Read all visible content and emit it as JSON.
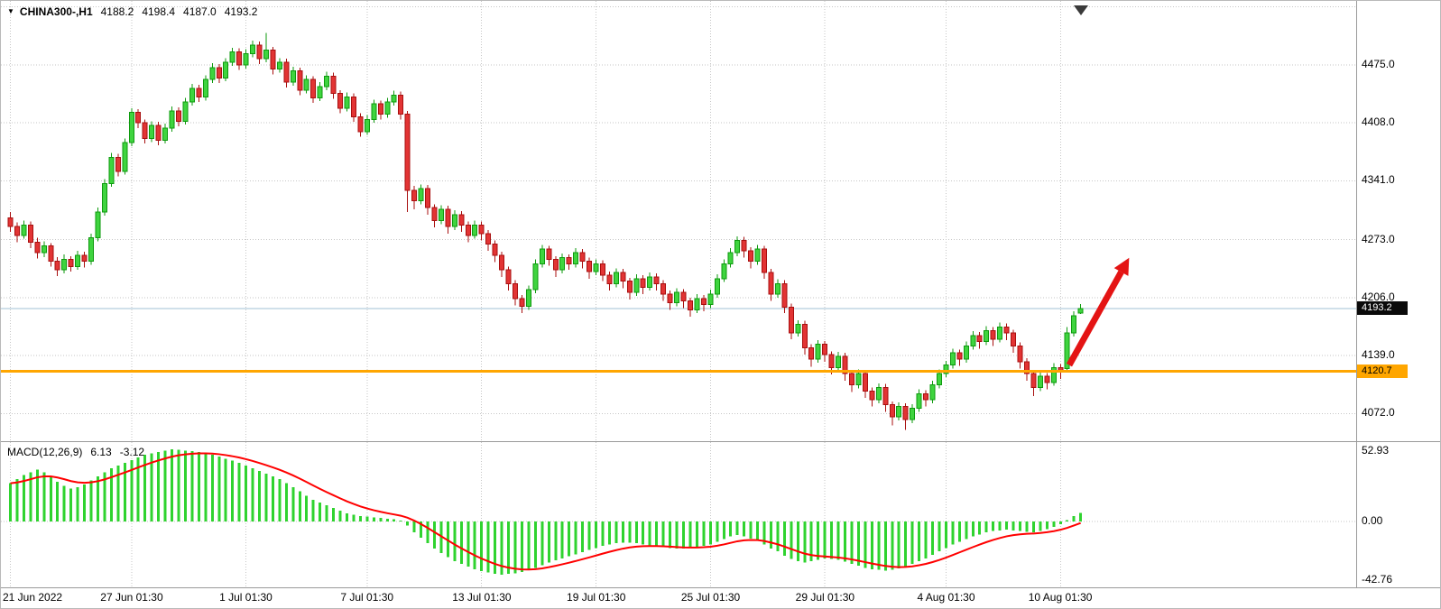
{
  "header": {
    "symbol": "CHINA300-,H1",
    "open": "4188.2",
    "high": "4198.4",
    "low": "4187.0",
    "close": "4193.2"
  },
  "macd_header": {
    "name": "MACD(12,26,9)",
    "value": "6.13",
    "signal": "-3.12"
  },
  "colors": {
    "up_fill": "#3fd43f",
    "up_stroke": "#0e9a0e",
    "down_fill": "#e23434",
    "down_stroke": "#a80f0f",
    "grid": "#c6c6c6",
    "separator": "#9a9a9a",
    "price_line": "#a2c0d4",
    "orange": "#ffa600",
    "macd_bar": "#2fd32f",
    "signal": "#ff0000",
    "arrow": "#e41414",
    "text": "#000000"
  },
  "axis": {
    "price_tags": [
      {
        "text": "4193.2",
        "value": 4193.2,
        "bg": "#0a0a0a",
        "fg": "#ffffff",
        "draggable": false
      },
      {
        "text": "4120.7",
        "value": 4120.7,
        "bg": "#ffa600",
        "fg": "#000000",
        "draggable": true
      }
    ]
  },
  "chart_data": [
    {
      "type": "candlestick",
      "title": "CHINA300-,H1",
      "ylim": [
        4040,
        4549
      ],
      "y_tick_labels": [
        "4475.0",
        "4408.0",
        "4341.0",
        "4273.0",
        "4206.0",
        "4139.0",
        "4072.0"
      ],
      "extra_gridlines": [
        4542
      ],
      "x_tick_indices": [
        0,
        18,
        35,
        53,
        70,
        87,
        104,
        121,
        139,
        156
      ],
      "x_tick_labels": [
        "21 Jun 2022",
        "27 Jun 01:30",
        "1 Jul 01:30",
        "7 Jul 01:30",
        "13 Jul 01:30",
        "19 Jul 01:30",
        "25 Jul 01:30",
        "29 Jul 01:30",
        "4 Aug 01:30",
        "10 Aug 01:30"
      ],
      "current_price": 4193.2,
      "hline": 4120.7,
      "arrow": {
        "bar_start": 157.3,
        "price_start": 4128,
        "bar_end": 166.2,
        "price_end": 4252
      },
      "candles": [
        [
          4298,
          4305,
          4282,
          4288
        ],
        [
          4288,
          4293,
          4270,
          4278
        ],
        [
          4278,
          4295,
          4274,
          4290
        ],
        [
          4290,
          4294,
          4263,
          4270
        ],
        [
          4270,
          4275,
          4251,
          4258
        ],
        [
          4258,
          4271,
          4253,
          4266
        ],
        [
          4266,
          4269,
          4242,
          4248
        ],
        [
          4248,
          4253,
          4231,
          4238
        ],
        [
          4238,
          4256,
          4234,
          4250
        ],
        [
          4250,
          4254,
          4236,
          4242
        ],
        [
          4242,
          4260,
          4238,
          4255
        ],
        [
          4255,
          4259,
          4241,
          4248
        ],
        [
          4248,
          4280,
          4244,
          4275
        ],
        [
          4275,
          4310,
          4271,
          4305
        ],
        [
          4305,
          4343,
          4301,
          4338
        ],
        [
          4338,
          4373,
          4334,
          4368
        ],
        [
          4368,
          4372,
          4346,
          4352
        ],
        [
          4352,
          4390,
          4348,
          4385
        ],
        [
          4385,
          4425,
          4381,
          4420
        ],
        [
          4420,
          4424,
          4402,
          4408
        ],
        [
          4408,
          4412,
          4384,
          4390
        ],
        [
          4390,
          4410,
          4386,
          4405
        ],
        [
          4405,
          4409,
          4382,
          4388
        ],
        [
          4388,
          4407,
          4384,
          4402
        ],
        [
          4402,
          4427,
          4398,
          4422
        ],
        [
          4422,
          4426,
          4404,
          4410
        ],
        [
          4410,
          4437,
          4406,
          4432
        ],
        [
          4432,
          4453,
          4428,
          4448
        ],
        [
          4448,
          4452,
          4432,
          4438
        ],
        [
          4438,
          4463,
          4434,
          4458
        ],
        [
          4458,
          4477,
          4454,
          4472
        ],
        [
          4472,
          4476,
          4454,
          4460
        ],
        [
          4460,
          4483,
          4456,
          4478
        ],
        [
          4478,
          4495,
          4474,
          4490
        ],
        [
          4490,
          4494,
          4469,
          4475
        ],
        [
          4475,
          4493,
          4471,
          4488
        ],
        [
          4488,
          4503,
          4484,
          4498
        ],
        [
          4498,
          4502,
          4476,
          4482
        ],
        [
          4482,
          4512,
          4478,
          4492
        ],
        [
          4492,
          4496,
          4464,
          4470
        ],
        [
          4470,
          4483,
          4466,
          4478
        ],
        [
          4478,
          4482,
          4449,
          4455
        ],
        [
          4455,
          4473,
          4451,
          4468
        ],
        [
          4468,
          4472,
          4440,
          4446
        ],
        [
          4446,
          4463,
          4442,
          4458
        ],
        [
          4458,
          4462,
          4431,
          4437
        ],
        [
          4437,
          4455,
          4433,
          4450
        ],
        [
          4450,
          4467,
          4446,
          4462
        ],
        [
          4462,
          4466,
          4436,
          4442
        ],
        [
          4442,
          4446,
          4419,
          4425
        ],
        [
          4425,
          4443,
          4421,
          4438
        ],
        [
          4438,
          4442,
          4409,
          4415
        ],
        [
          4415,
          4419,
          4392,
          4398
        ],
        [
          4398,
          4417,
          4394,
          4412
        ],
        [
          4412,
          4435,
          4408,
          4430
        ],
        [
          4430,
          4434,
          4412,
          4418
        ],
        [
          4418,
          4437,
          4414,
          4432
        ],
        [
          4432,
          4445,
          4428,
          4440
        ],
        [
          4440,
          4444,
          4412,
          4418
        ],
        [
          4418,
          4422,
          4305,
          4330
        ],
        [
          4330,
          4335,
          4308,
          4318
        ],
        [
          4318,
          4337,
          4314,
          4332
        ],
        [
          4332,
          4336,
          4302,
          4310
        ],
        [
          4310,
          4314,
          4287,
          4295
        ],
        [
          4295,
          4313,
          4291,
          4308
        ],
        [
          4308,
          4312,
          4280,
          4288
        ],
        [
          4288,
          4307,
          4284,
          4302
        ],
        [
          4302,
          4306,
          4282,
          4290
        ],
        [
          4290,
          4294,
          4270,
          4278
        ],
        [
          4278,
          4295,
          4274,
          4290
        ],
        [
          4290,
          4294,
          4272,
          4280
        ],
        [
          4280,
          4284,
          4260,
          4268
        ],
        [
          4268,
          4272,
          4247,
          4255
        ],
        [
          4255,
          4259,
          4230,
          4238
        ],
        [
          4238,
          4242,
          4214,
          4222
        ],
        [
          4222,
          4226,
          4197,
          4205
        ],
        [
          4205,
          4209,
          4188,
          4196
        ],
        [
          4196,
          4220,
          4192,
          4215
        ],
        [
          4215,
          4250,
          4211,
          4245
        ],
        [
          4245,
          4267,
          4241,
          4262
        ],
        [
          4262,
          4266,
          4243,
          4250
        ],
        [
          4250,
          4254,
          4230,
          4238
        ],
        [
          4238,
          4257,
          4234,
          4252
        ],
        [
          4252,
          4256,
          4238,
          4245
        ],
        [
          4245,
          4263,
          4241,
          4258
        ],
        [
          4258,
          4262,
          4240,
          4248
        ],
        [
          4248,
          4252,
          4228,
          4236
        ],
        [
          4236,
          4250,
          4232,
          4245
        ],
        [
          4245,
          4249,
          4225,
          4232
        ],
        [
          4232,
          4236,
          4214,
          4222
        ],
        [
          4222,
          4240,
          4218,
          4235
        ],
        [
          4235,
          4239,
          4217,
          4225
        ],
        [
          4225,
          4229,
          4204,
          4212
        ],
        [
          4212,
          4233,
          4208,
          4228
        ],
        [
          4228,
          4232,
          4210,
          4218
        ],
        [
          4218,
          4235,
          4214,
          4230
        ],
        [
          4230,
          4234,
          4214,
          4222
        ],
        [
          4222,
          4226,
          4202,
          4210
        ],
        [
          4210,
          4214,
          4192,
          4200
        ],
        [
          4200,
          4217,
          4196,
          4212
        ],
        [
          4212,
          4216,
          4194,
          4202
        ],
        [
          4202,
          4206,
          4184,
          4192
        ],
        [
          4192,
          4210,
          4188,
          4205
        ],
        [
          4205,
          4209,
          4190,
          4198
        ],
        [
          4198,
          4215,
          4194,
          4210
        ],
        [
          4210,
          4233,
          4206,
          4228
        ],
        [
          4228,
          4250,
          4224,
          4245
        ],
        [
          4245,
          4263,
          4241,
          4258
        ],
        [
          4258,
          4277,
          4254,
          4272
        ],
        [
          4272,
          4276,
          4252,
          4260
        ],
        [
          4260,
          4264,
          4240,
          4248
        ],
        [
          4248,
          4267,
          4244,
          4262
        ],
        [
          4262,
          4266,
          4228,
          4235
        ],
        [
          4235,
          4239,
          4202,
          4210
        ],
        [
          4210,
          4227,
          4206,
          4222
        ],
        [
          4222,
          4226,
          4188,
          4195
        ],
        [
          4195,
          4199,
          4158,
          4165
        ],
        [
          4165,
          4180,
          4161,
          4175
        ],
        [
          4175,
          4179,
          4140,
          4148
        ],
        [
          4148,
          4152,
          4126,
          4135
        ],
        [
          4135,
          4157,
          4131,
          4152
        ],
        [
          4152,
          4156,
          4132,
          4140
        ],
        [
          4140,
          4144,
          4117,
          4125
        ],
        [
          4125,
          4143,
          4121,
          4138
        ],
        [
          4138,
          4142,
          4110,
          4118
        ],
        [
          4118,
          4122,
          4097,
          4105
        ],
        [
          4105,
          4123,
          4101,
          4118
        ],
        [
          4118,
          4122,
          4090,
          4098
        ],
        [
          4098,
          4102,
          4080,
          4088
        ],
        [
          4088,
          4107,
          4084,
          4102
        ],
        [
          4102,
          4106,
          4074,
          4082
        ],
        [
          4082,
          4086,
          4058,
          4068
        ],
        [
          4068,
          4085,
          4064,
          4080
        ],
        [
          4080,
          4084,
          4053,
          4065
        ],
        [
          4065,
          4083,
          4061,
          4078
        ],
        [
          4078,
          4100,
          4074,
          4095
        ],
        [
          4095,
          4099,
          4080,
          4088
        ],
        [
          4088,
          4110,
          4084,
          4105
        ],
        [
          4105,
          4123,
          4101,
          4118
        ],
        [
          4118,
          4133,
          4114,
          4128
        ],
        [
          4128,
          4147,
          4124,
          4142
        ],
        [
          4142,
          4146,
          4127,
          4135
        ],
        [
          4135,
          4155,
          4131,
          4150
        ],
        [
          4150,
          4167,
          4146,
          4162
        ],
        [
          4162,
          4166,
          4147,
          4155
        ],
        [
          4155,
          4173,
          4151,
          4168
        ],
        [
          4168,
          4172,
          4150,
          4158
        ],
        [
          4158,
          4177,
          4154,
          4172
        ],
        [
          4172,
          4176,
          4157,
          4165
        ],
        [
          4165,
          4169,
          4142,
          4150
        ],
        [
          4150,
          4154,
          4124,
          4132
        ],
        [
          4132,
          4136,
          4110,
          4118
        ],
        [
          4118,
          4122,
          4092,
          4102
        ],
        [
          4102,
          4120,
          4098,
          4115
        ],
        [
          4115,
          4119,
          4100,
          4108
        ],
        [
          4108,
          4130,
          4104,
          4125
        ],
        [
          4125,
          4129,
          4112,
          4122
        ],
        [
          4124,
          4172,
          4120,
          4165
        ],
        [
          4165,
          4190,
          4161,
          4185
        ],
        [
          4188.2,
          4198.4,
          4187.0,
          4193.2
        ]
      ]
    },
    {
      "type": "bar",
      "name": "MACD(12,26,9)",
      "ylim": [
        -48.3,
        58.2
      ],
      "y_tick_labels": [
        "52.93",
        "0.00",
        "-42.76"
      ],
      "zero_line": 0,
      "signal_period": 9,
      "values": [
        28,
        31,
        34,
        36,
        38,
        36,
        33,
        29,
        26,
        24,
        25,
        27,
        30,
        33,
        36,
        39,
        41,
        43,
        45,
        47,
        49,
        50,
        51,
        52,
        52.9,
        52.5,
        52,
        51.5,
        51,
        50,
        49,
        47.5,
        46,
        44.5,
        43,
        41,
        39,
        37,
        35,
        33,
        31,
        28,
        25,
        22,
        19,
        16,
        14,
        12,
        10,
        8,
        6,
        5,
        4,
        3.5,
        3,
        2.5,
        2,
        1.5,
        0.5,
        -3,
        -8,
        -12,
        -16,
        -20,
        -23,
        -26,
        -29,
        -31,
        -33,
        -35,
        -36.5,
        -37.5,
        -38.5,
        -39,
        -38.5,
        -38,
        -37,
        -35.5,
        -34,
        -32,
        -30,
        -28.5,
        -27,
        -25.5,
        -24,
        -22.5,
        -21,
        -19.5,
        -18,
        -17,
        -16,
        -15.5,
        -15.5,
        -16,
        -17,
        -17.5,
        -18,
        -19,
        -19.5,
        -20,
        -20,
        -19.5,
        -19,
        -18,
        -17,
        -15,
        -13,
        -11,
        -10,
        -11,
        -12.5,
        -14,
        -17,
        -20,
        -22,
        -25,
        -27.5,
        -29,
        -30,
        -29,
        -28,
        -27,
        -27.5,
        -28,
        -29.5,
        -31,
        -32.5,
        -34,
        -35,
        -35.5,
        -36,
        -35.5,
        -34.5,
        -33,
        -31,
        -29,
        -27,
        -24.5,
        -22,
        -19.5,
        -17,
        -15,
        -13,
        -11,
        -9.5,
        -8,
        -7,
        -6.5,
        -6,
        -6.5,
        -7,
        -7.5,
        -8,
        -7,
        -5.5,
        -4,
        -2,
        1,
        4,
        6.13
      ]
    }
  ]
}
